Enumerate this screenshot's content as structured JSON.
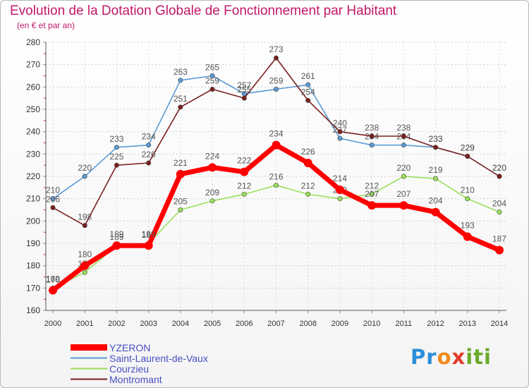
{
  "title": "Evolution de la Dotation Globale de Fonctionnement par Habitant",
  "subtitle": "(en € et par an)",
  "logo": {
    "text": "Proxiti"
  },
  "chart_data": {
    "type": "line",
    "title": "Evolution de la Dotation Globale de Fonctionnement par Habitant",
    "ylabel": "(en € et par an)",
    "xlabel": "",
    "ylim": [
      160,
      280
    ],
    "yticks": [
      160,
      170,
      180,
      190,
      200,
      210,
      220,
      230,
      240,
      250,
      260,
      270,
      280
    ],
    "categories": [
      "2000",
      "2001",
      "2002",
      "2003",
      "2004",
      "2005",
      "2006",
      "2007",
      "2008",
      "2009",
      "2010",
      "2011",
      "2012",
      "2013",
      "2014"
    ],
    "series": [
      {
        "name": "Saint-Laurent-de-Vaux",
        "color": "#5b9bd5",
        "values": [
          210,
          220,
          233,
          234,
          263,
          265,
          257,
          259,
          261,
          237,
          234,
          234,
          233,
          229,
          220
        ]
      },
      {
        "name": "Montromant",
        "color": "#7a1f1f",
        "values": [
          206,
          198,
          225,
          226,
          251,
          259,
          255,
          273,
          254,
          240,
          238,
          238,
          233,
          229,
          220
        ]
      },
      {
        "name": "Courzieu",
        "color": "#99e05a",
        "values": [
          170,
          177,
          189,
          190,
          205,
          209,
          212,
          216,
          212,
          210,
          212,
          220,
          219,
          210,
          204
        ]
      },
      {
        "name": "YZERON",
        "color": "#ff0000",
        "values": [
          169,
          180,
          189,
          189,
          221,
          224,
          222,
          234,
          226,
          214,
          207,
          207,
          204,
          193,
          187
        ]
      }
    ],
    "legend": [
      {
        "name": "YZERON",
        "color": "#ff0000"
      },
      {
        "name": "Saint-Laurent-de-Vaux",
        "color": "#5b9bd5"
      },
      {
        "name": "Courzieu",
        "color": "#99e05a"
      },
      {
        "name": "Montromant",
        "color": "#7a1f1f"
      }
    ]
  }
}
